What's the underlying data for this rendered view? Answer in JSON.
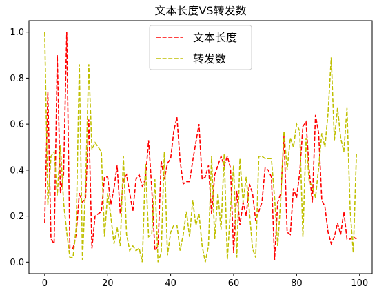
{
  "chart_data": {
    "type": "line",
    "title": "文本长度VS转发数",
    "xlabel": "",
    "ylabel": "",
    "xlim": [
      -5,
      104
    ],
    "ylim": [
      -0.05,
      1.05
    ],
    "xticks": [
      0,
      20,
      40,
      60,
      80,
      100
    ],
    "yticks": [
      0.0,
      0.2,
      0.4,
      0.6,
      0.8,
      1.0
    ],
    "xtick_labels": [
      "0",
      "20",
      "40",
      "60",
      "80",
      "100"
    ],
    "ytick_labels": [
      "0.0",
      "0.2",
      "0.4",
      "0.6",
      "0.8",
      "1.0"
    ],
    "legend_position": "top-center",
    "grid": false,
    "series": [
      {
        "name": "文本长度",
        "color": "#ff0000",
        "linestyle": "dashed",
        "x": [
          0,
          1,
          2,
          3,
          4,
          5,
          6,
          7,
          8,
          9,
          10,
          11,
          12,
          13,
          14,
          15,
          16,
          17,
          18,
          19,
          20,
          21,
          22,
          23,
          24,
          25,
          26,
          27,
          28,
          29,
          30,
          31,
          32,
          33,
          34,
          35,
          36,
          37,
          38,
          39,
          40,
          41,
          42,
          43,
          44,
          45,
          46,
          47,
          48,
          49,
          50,
          51,
          52,
          53,
          54,
          55,
          56,
          57,
          58,
          59,
          60,
          61,
          62,
          63,
          64,
          65,
          66,
          67,
          68,
          69,
          70,
          71,
          72,
          73,
          74,
          75,
          76,
          77,
          78,
          79,
          80,
          81,
          82,
          83,
          84,
          85,
          86,
          87,
          88,
          89,
          90,
          91,
          92,
          93,
          94,
          95,
          96,
          97,
          98,
          99
        ],
        "values": [
          0.17,
          0.74,
          0.1,
          0.08,
          0.9,
          0.3,
          0.38,
          1.0,
          0.06,
          0.06,
          0.12,
          0.3,
          0.26,
          0.28,
          0.62,
          0.06,
          0.2,
          0.21,
          0.22,
          0.37,
          0.37,
          0.25,
          0.32,
          0.42,
          0.21,
          0.36,
          0.38,
          0.3,
          0.22,
          0.36,
          0.38,
          0.33,
          0.36,
          0.53,
          0.32,
          0.05,
          0.07,
          0.44,
          0.36,
          0.43,
          0.45,
          0.57,
          0.63,
          0.44,
          0.34,
          0.35,
          0.35,
          0.44,
          0.52,
          0.6,
          0.36,
          0.37,
          0.42,
          0.21,
          0.38,
          0.42,
          0.46,
          0.42,
          0.46,
          0.41,
          0.04,
          0.31,
          0.16,
          0.26,
          0.2,
          0.34,
          0.3,
          0.18,
          0.22,
          0.26,
          0.41,
          0.4,
          0.37,
          0.01,
          0.26,
          0.3,
          0.55,
          0.13,
          0.12,
          0.32,
          0.28,
          0.39,
          0.59,
          0.61,
          0.4,
          0.26,
          0.64,
          0.56,
          0.27,
          0.24,
          0.13,
          0.08,
          0.11,
          0.17,
          0.12,
          0.22,
          0.1,
          0.1,
          0.11,
          0.1
        ],
        "x_trim": 100
      },
      {
        "name": "转发数",
        "color": "#bfbf00",
        "linestyle": "dashed",
        "x": [
          0,
          1,
          2,
          3,
          4,
          5,
          6,
          7,
          8,
          9,
          10,
          11,
          12,
          13,
          14,
          15,
          16,
          17,
          18,
          19,
          20,
          21,
          22,
          23,
          24,
          25,
          26,
          27,
          28,
          29,
          30,
          31,
          32,
          33,
          34,
          35,
          36,
          37,
          38,
          39,
          40,
          41,
          42,
          43,
          44,
          45,
          46,
          47,
          48,
          49,
          50,
          51,
          52,
          53,
          54,
          55,
          56,
          57,
          58,
          59,
          60,
          61,
          62,
          63,
          64,
          65,
          66,
          67,
          68,
          69,
          70,
          71,
          72,
          73,
          74,
          75,
          76,
          77,
          78,
          79,
          80,
          81,
          82,
          83,
          84,
          85,
          86,
          87,
          88,
          89,
          90,
          91,
          92,
          93,
          94,
          95,
          96,
          97,
          98,
          99
        ],
        "values": [
          1.0,
          0.25,
          0.46,
          0.48,
          0.29,
          0.51,
          0.26,
          0.13,
          0.02,
          0.02,
          0.15,
          0.86,
          0.01,
          0.34,
          0.86,
          0.49,
          0.52,
          0.5,
          0.48,
          0.11,
          0.3,
          0.2,
          0.08,
          0.15,
          0.07,
          0.46,
          0.12,
          0.05,
          0.07,
          0.05,
          0.06,
          0.0,
          0.43,
          0.11,
          0.12,
          0.36,
          0.0,
          0.04,
          0.48,
          0.03,
          0.13,
          0.16,
          0.16,
          0.05,
          0.12,
          0.22,
          0.11,
          0.27,
          0.16,
          0.21,
          0.07,
          0.0,
          0.07,
          0.46,
          0.1,
          0.3,
          0.14,
          0.47,
          0.01,
          0.23,
          0.42,
          0.02,
          0.45,
          0.26,
          0.37,
          0.22,
          0.06,
          0.02,
          0.46,
          0.46,
          0.45,
          0.45,
          0.45,
          0.28,
          0.07,
          0.28,
          0.57,
          0.4,
          0.54,
          0.5,
          0.6,
          0.57,
          0.11,
          0.54,
          0.35,
          0.33,
          0.28,
          0.41,
          0.56,
          0.5,
          0.65,
          0.89,
          0.53,
          0.67,
          0.54,
          0.48,
          0.67,
          0.23,
          0.04,
          0.47
        ],
        "x_trim": 100
      }
    ]
  }
}
